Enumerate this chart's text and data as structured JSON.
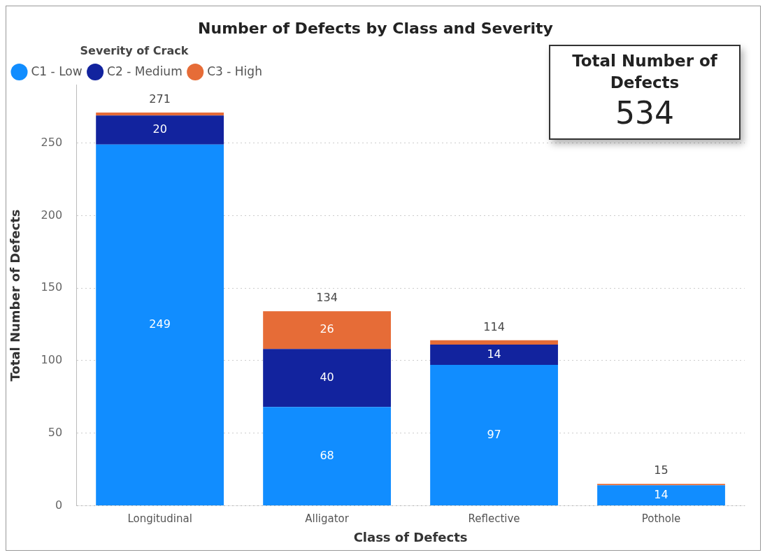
{
  "chart_data": [
    {
      "type": "bar",
      "title": "Number of Defects by Class and Severity",
      "xlabel": "Class of Defects",
      "ylabel": "Total Number of Defects",
      "legend_title": "Severity of Crack",
      "legend": "top left",
      "stacked": true,
      "categories": [
        "Longitudinal",
        "Alligator",
        "Reflective",
        "Pothole"
      ],
      "series": [
        {
          "name": "C1 - Low",
          "color": "#118dff",
          "values": [
            249,
            68,
            97,
            14
          ],
          "value_labels": [
            "249",
            "68",
            "97",
            "14"
          ]
        },
        {
          "name": "C2 - Medium",
          "color": "#12239e",
          "values": [
            20,
            40,
            14,
            0
          ],
          "value_labels": [
            "20",
            "40",
            "14",
            null
          ]
        },
        {
          "name": "C3 - High",
          "color": "#e66c37",
          "values": [
            2,
            26,
            3,
            1
          ],
          "value_labels": [
            null,
            "26",
            null,
            null
          ]
        }
      ],
      "totals": [
        "271",
        "134",
        "114",
        "15"
      ],
      "ylim": [
        0,
        290
      ],
      "yticks": [
        0,
        50,
        100,
        150,
        200,
        250
      ],
      "grid": "y"
    },
    {
      "type": "other",
      "title": "Total Number of Defects",
      "annotations": [
        "534"
      ]
    }
  ]
}
